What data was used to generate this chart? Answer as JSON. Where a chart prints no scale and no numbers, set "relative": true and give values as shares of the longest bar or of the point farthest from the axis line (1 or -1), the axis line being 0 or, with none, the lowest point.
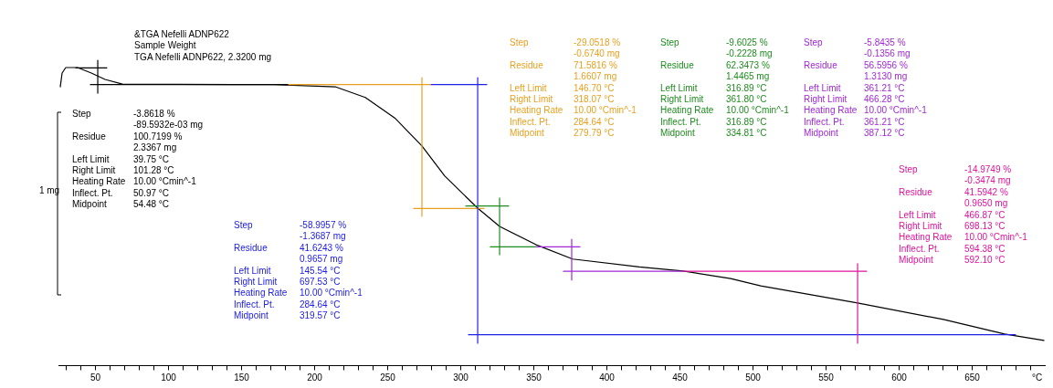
{
  "chart_data": {
    "type": "line",
    "title": "&TGA Nefelli ADNP622",
    "subtitle": "Sample Weight",
    "xlabel": "°C",
    "relative": true,
    "xlim": [
      25,
      700
    ],
    "xticks": [
      {
        "value": 30,
        "label": null
      },
      {
        "value": 40,
        "label": null
      },
      50,
      {
        "value": 60,
        "label": null
      },
      {
        "value": 70,
        "label": null
      },
      {
        "value": 80,
        "label": null
      },
      {
        "value": 90,
        "label": null
      },
      100,
      {
        "value": 110,
        "label": null
      },
      {
        "value": 120,
        "label": null
      },
      {
        "value": 130,
        "label": null
      },
      {
        "value": 140,
        "label": null
      },
      150,
      {
        "value": 160,
        "label": null
      },
      {
        "value": 170,
        "label": null
      },
      {
        "value": 180,
        "label": null
      },
      {
        "value": 190,
        "label": null
      },
      200,
      {
        "value": 210,
        "label": null
      },
      {
        "value": 220,
        "label": null
      },
      {
        "value": 230,
        "label": null
      },
      {
        "value": 240,
        "label": null
      },
      250,
      {
        "value": 260,
        "label": null
      },
      {
        "value": 270,
        "label": null
      },
      {
        "value": 280,
        "label": null
      },
      {
        "value": 290,
        "label": null
      },
      300,
      {
        "value": 310,
        "label": null
      },
      {
        "value": 320,
        "label": null
      },
      {
        "value": 330,
        "label": null
      },
      {
        "value": 340,
        "label": null
      },
      350,
      {
        "value": 360,
        "label": null
      },
      {
        "value": 370,
        "label": null
      },
      {
        "value": 380,
        "label": null
      },
      {
        "value": 390,
        "label": null
      },
      400,
      {
        "value": 410,
        "label": null
      },
      {
        "value": 420,
        "label": null
      },
      {
        "value": 430,
        "label": null
      },
      {
        "value": 440,
        "label": null
      },
      450,
      {
        "value": 460,
        "label": null
      },
      {
        "value": 470,
        "label": null
      },
      {
        "value": 480,
        "label": null
      },
      {
        "value": 490,
        "label": null
      },
      500,
      {
        "value": 510,
        "label": null
      },
      {
        "value": 520,
        "label": null
      },
      {
        "value": 530,
        "label": null
      },
      {
        "value": 540,
        "label": null
      },
      550,
      {
        "value": 560,
        "label": null
      },
      {
        "value": 570,
        "label": null
      },
      {
        "value": 580,
        "label": null
      },
      {
        "value": 590,
        "label": null
      },
      600,
      {
        "value": 610,
        "label": null
      },
      {
        "value": 620,
        "label": null
      },
      {
        "value": 630,
        "label": null
      },
      {
        "value": 640,
        "label": null
      },
      650,
      {
        "value": 660,
        "label": null
      },
      {
        "value": 670,
        "label": null
      },
      {
        "value": 680,
        "label": null
      },
      {
        "value": 690,
        "label": null
      }
    ],
    "annotations": [
      "TGA Nefelli ADNP622, 2.3200 mg",
      "1 mg",
      "Step\t-3.8618 %\n\t-89.5932e-03 mg\nResidue\t100.7199 %\n\t2.3367 mg\nLeft Limit\t39.75 °C\nRight Limit\t101.28 °C\nHeating Rate\t10.00 °Cmin^-1\nInflect. Pt.\t50.97 °C\nMidpoint\t54.48 °C",
      "Step\t-58.9957 %\n\t-1.3687 mg\nResidue\t41.6243 %\n\t0.9657 mg\nLeft Limit\t145.54 °C\nRight Limit\t697.53 °C\nHeating Rate\t10.00 °Cmin^-1\nInflect. Pt.\t284.64 °C\nMidpoint\t319.57 °C",
      "Step\t-29.0518 %\n\t-0.6740 mg\nResidue\t71.5816 %\n\t1.6607 mg\nLeft Limit\t146.70 °C\nRight Limit\t318.07 °C\nHeating Rate\t10.00 °Cmin^-1\nInflect. Pt.\t284.64 °C\nMidpoint\t279.79 °C",
      "Step\t-9.6025 %\n\t-0.2228 mg\nResidue\t62.3473 %\n\t1.4465 mg\nLeft Limit\t316.89 °C\nRight Limit\t361.80 °C\nHeating Rate\t10.00 °Cmin^-1\nInflect. Pt.\t316.89 °C\nMidpoint\t334.81 °C",
      "Step\t-5.8435 %\n\t-0.1356 mg\nResidue\t56.5956 %\n\t1.3130 mg\nLeft Limit\t361.21 °C\nRight Limit\t466.28 °C\nHeating Rate\t10.00 °Cmin^-1\nInflect. Pt.\t361.21 °C\nMidpoint\t387.12 °C",
      "Step\t-14.9749 %\n\t-0.3474 mg\nResidue\t41.5942 %\n\t0.9650 mg\nLeft Limit\t466.87 °C\nRight Limit\t698.13 °C\nHeating Rate\t10.00 °Cmin^-1\nInflect. Pt.\t594.38 °C\nMidpoint\t592.10 °C"
    ],
    "series": [
      {
        "color": "#000000",
        "x": [
          26.25,
          27.5,
          30,
          38.1,
          47.5,
          56.9,
          68.75,
          172.5,
          214.4,
          235,
          255.6,
          273.75,
          289.4,
          311.9,
          326.9,
          351.9,
          376.9,
          422.5,
          452.5,
          485,
          505.6,
          571.9,
          630.6,
          672.5,
          699.4
        ],
        "values": [
          0.913,
          0.958,
          0.976,
          0.976,
          0.958,
          0.937,
          0.922,
          0.92,
          0.913,
          0.878,
          0.809,
          0.719,
          0.62,
          0.515,
          0.455,
          0.395,
          0.348,
          0.322,
          0.309,
          0.284,
          0.26,
          0.204,
          0.15,
          0.102,
          0.081
        ]
      },
      {
        "color": "#000000",
        "x": [
          36.9,
          58.1
        ],
        "values": [
          0.975,
          0.975
        ]
      },
      {
        "color": "#000000",
        "x": [
          51.9,
          51.9
        ],
        "values": [
          1.0,
          0.892
        ]
      },
      {
        "color": "#000000",
        "x": [
          46.9,
          182.5
        ],
        "values": [
          0.92,
          0.92
        ]
      },
      {
        "color": "#e8a020",
        "x": [
          182.5,
          279.4
        ],
        "values": [
          0.92,
          0.92
        ]
      },
      {
        "color": "#e8a020",
        "x": [
          273.75,
          273.75
        ],
        "values": [
          0.943,
          0.488
        ]
      },
      {
        "color": "#e8a020",
        "x": [
          268.1,
          316.25
        ],
        "values": [
          0.514,
          0.514
        ]
      },
      {
        "color": "#2020e8",
        "x": [
          280,
          318.1
        ],
        "values": [
          0.92,
          0.92
        ]
      },
      {
        "color": "#2020e8",
        "x": [
          311.9,
          311.9
        ],
        "values": [
          0.943,
          0.072
        ]
      },
      {
        "color": "#2020e8",
        "x": [
          305.6,
          680
        ],
        "values": [
          0.1,
          0.1
        ]
      },
      {
        "color": "#1e8c1e",
        "x": [
          326.9,
          326.9
        ],
        "values": [
          0.548,
          0.362
        ]
      },
      {
        "color": "#1e8c1e",
        "x": [
          303.75,
          333.1
        ],
        "values": [
          0.522,
          0.522
        ]
      },
      {
        "color": "#1e8c1e",
        "x": [
          320.6,
          351.9
        ],
        "values": [
          0.388,
          0.388
        ]
      },
      {
        "color": "#a028d8",
        "x": [
          351.9,
          381.9
        ],
        "values": [
          0.388,
          0.388
        ]
      },
      {
        "color": "#a028d8",
        "x": [
          376.25,
          376.25
        ],
        "values": [
          0.413,
          0.279
        ]
      },
      {
        "color": "#a028d8",
        "x": [
          370.6,
          452.5
        ],
        "values": [
          0.308,
          0.308
        ]
      },
      {
        "color": "#e0149c",
        "x": [
          452.5,
          578.1
        ],
        "values": [
          0.308,
          0.308
        ]
      },
      {
        "color": "#e0149c",
        "x": [
          571.9,
          571.9
        ],
        "values": [
          0.333,
          0.072
        ]
      }
    ]
  }
}
